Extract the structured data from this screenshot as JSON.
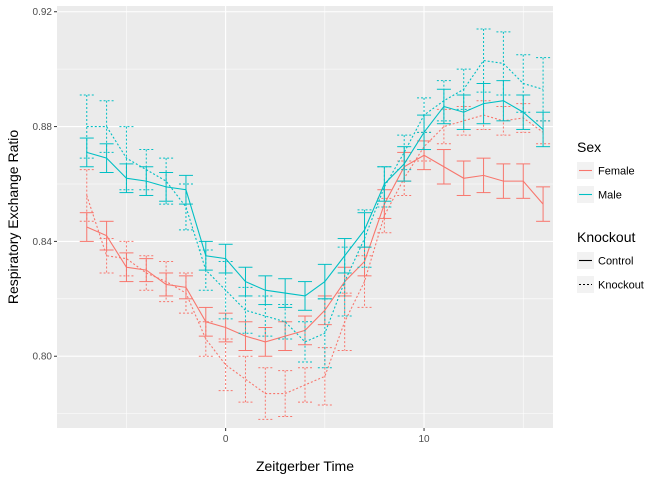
{
  "chart_data": {
    "type": "line",
    "title": "",
    "xlabel": "Zeitgerber Time",
    "ylabel": "Respiratory Exchange Ratio",
    "xlim": [
      -8.5,
      16.5
    ],
    "ylim": [
      0.775,
      0.922
    ],
    "x_ticks": [
      0,
      10
    ],
    "x_tick_labels": [
      "0",
      "10"
    ],
    "y_ticks": [
      0.8,
      0.84,
      0.88,
      0.92
    ],
    "y_tick_labels": [
      "0.80",
      "0.84",
      "0.88",
      "0.92"
    ],
    "grid": true,
    "legend_position": "right",
    "colors": {
      "Female": "#F8766D",
      "Male": "#00BFC4",
      "panel": "#EBEBEB",
      "grid": "#FFFFFF"
    },
    "legends": [
      {
        "title": "Sex",
        "items": [
          {
            "label": "Female",
            "color": "#F8766D"
          },
          {
            "label": "Male",
            "color": "#00BFC4"
          }
        ]
      },
      {
        "title": "Knockout",
        "items": [
          {
            "label": "Control",
            "dash": "solid"
          },
          {
            "label": "Knockout",
            "dash": "dotted"
          }
        ]
      }
    ],
    "x": [
      -7,
      -6,
      -5,
      -4,
      -3,
      -2,
      -1,
      0,
      1,
      2,
      3,
      4,
      5,
      6,
      7,
      8,
      9,
      10,
      11,
      12,
      13,
      14,
      15,
      16
    ],
    "series": [
      {
        "sex": "Female",
        "knockout": "Control",
        "color": "#F8766D",
        "dash": "solid",
        "y": [
          0.845,
          0.842,
          0.831,
          0.83,
          0.825,
          0.824,
          0.812,
          0.81,
          0.807,
          0.805,
          0.807,
          0.809,
          0.816,
          0.826,
          0.833,
          0.853,
          0.866,
          0.87,
          0.866,
          0.862,
          0.863,
          0.861,
          0.861,
          0.853
        ],
        "err": [
          0.005,
          0.005,
          0.005,
          0.004,
          0.004,
          0.004,
          0.005,
          0.005,
          0.005,
          0.005,
          0.005,
          0.005,
          0.005,
          0.005,
          0.005,
          0.005,
          0.005,
          0.005,
          0.006,
          0.006,
          0.006,
          0.006,
          0.006,
          0.006
        ]
      },
      {
        "sex": "Female",
        "knockout": "Knockout",
        "color": "#F8766D",
        "dash": "dotted",
        "y": [
          0.856,
          0.835,
          0.834,
          0.829,
          0.826,
          0.822,
          0.806,
          0.797,
          0.792,
          0.787,
          0.787,
          0.79,
          0.793,
          0.812,
          0.826,
          0.849,
          0.862,
          0.873,
          0.88,
          0.882,
          0.884,
          0.882,
          0.883,
          0.878
        ],
        "err": [
          0.009,
          0.006,
          0.006,
          0.006,
          0.007,
          0.007,
          0.006,
          0.009,
          0.008,
          0.009,
          0.008,
          0.006,
          0.01,
          0.01,
          0.009,
          0.006,
          0.006,
          0.005,
          0.006,
          0.005,
          0.005,
          0.005,
          0.005,
          0.004
        ]
      },
      {
        "sex": "Male",
        "knockout": "Control",
        "color": "#00BFC4",
        "dash": "solid",
        "y": [
          0.871,
          0.869,
          0.862,
          0.861,
          0.859,
          0.858,
          0.835,
          0.834,
          0.826,
          0.823,
          0.822,
          0.821,
          0.826,
          0.835,
          0.844,
          0.86,
          0.867,
          0.878,
          0.887,
          0.885,
          0.888,
          0.889,
          0.885,
          0.879
        ],
        "err": [
          0.005,
          0.005,
          0.005,
          0.005,
          0.005,
          0.005,
          0.005,
          0.005,
          0.005,
          0.005,
          0.005,
          0.005,
          0.006,
          0.006,
          0.006,
          0.006,
          0.006,
          0.006,
          0.006,
          0.006,
          0.007,
          0.007,
          0.006,
          0.006
        ]
      },
      {
        "sex": "Male",
        "knockout": "Knockout",
        "color": "#00BFC4",
        "dash": "dotted",
        "y": [
          0.88,
          0.88,
          0.869,
          0.865,
          0.861,
          0.852,
          0.83,
          0.823,
          0.816,
          0.814,
          0.812,
          0.805,
          0.808,
          0.826,
          0.841,
          0.859,
          0.871,
          0.884,
          0.889,
          0.893,
          0.903,
          0.902,
          0.895,
          0.893
        ],
        "err": [
          0.011,
          0.009,
          0.011,
          0.007,
          0.008,
          0.008,
          0.007,
          0.01,
          0.008,
          0.007,
          0.006,
          0.007,
          0.012,
          0.012,
          0.01,
          0.007,
          0.006,
          0.006,
          0.007,
          0.007,
          0.011,
          0.011,
          0.01,
          0.011
        ]
      }
    ]
  }
}
